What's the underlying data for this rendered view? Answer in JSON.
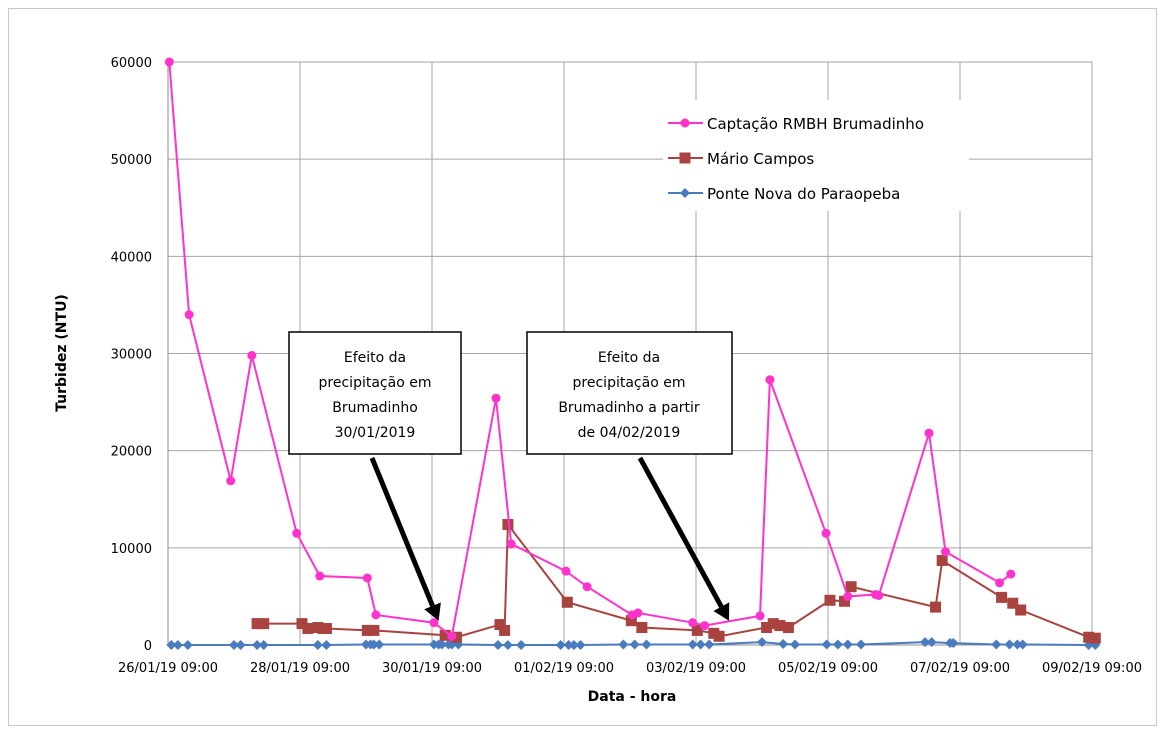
{
  "chart_data": {
    "type": "line",
    "title": "",
    "xlabel": "Data - hora",
    "ylabel": "Turbidez (NTU)",
    "ylim": [
      0,
      60000
    ],
    "yticks": [
      0,
      10000,
      20000,
      30000,
      40000,
      50000,
      60000
    ],
    "ytick_labels": [
      "0",
      "10000",
      "20000",
      "30000",
      "40000",
      "50000",
      "60000"
    ],
    "xlim": [
      0,
      14
    ],
    "xticks": [
      0,
      2,
      4,
      6,
      8,
      10,
      12,
      14
    ],
    "xtick_labels": [
      "26/01/19 09:00",
      "28/01/19 09:00",
      "30/01/19 09:00",
      "01/02/19 09:00",
      "03/02/19 09:00",
      "05/02/19 09:00",
      "07/02/19 09:00",
      "09/02/19 09:00"
    ],
    "x_unit": "days after 26/01/19 09:00",
    "grid": true,
    "legend_position": "top-right",
    "series": [
      {
        "name": "Captação RMBH Brumadinho",
        "color": "#ff33cc",
        "marker": "circle",
        "x": [
          0.02,
          0.32,
          0.95,
          1.27,
          1.95,
          2.3,
          3.02,
          3.15,
          4.03,
          4.3,
          4.97,
          5.2,
          6.03,
          6.35,
          7.03,
          7.12,
          7.95,
          8.13,
          8.97,
          9.12,
          9.97,
          10.3,
          10.72,
          10.77,
          11.53,
          11.78,
          12.6,
          12.77
        ],
        "y": [
          60000,
          34000,
          16900,
          29800,
          11500,
          7100,
          6900,
          3100,
          2300,
          900,
          25400,
          10400,
          7600,
          6000,
          3100,
          3300,
          2300,
          2000,
          3000,
          27300,
          11500,
          5000,
          5200,
          5100,
          21800,
          9600,
          6400,
          7300
        ]
      },
      {
        "name": "Mário Campos",
        "color": "#a84340",
        "marker": "square",
        "x": [
          1.35,
          1.45,
          2.03,
          2.12,
          2.27,
          2.35,
          2.4,
          3.02,
          3.12,
          4.2,
          4.37,
          5.03,
          5.1,
          5.15,
          6.05,
          7.02,
          7.18,
          8.02,
          8.27,
          8.35,
          9.07,
          9.17,
          9.27,
          9.4,
          10.03,
          10.25,
          10.35,
          11.63,
          11.73,
          12.63,
          12.8,
          12.92,
          13.95,
          14.05
        ],
        "y": [
          2200,
          2200,
          2200,
          1700,
          1800,
          1700,
          1700,
          1500,
          1500,
          1000,
          800,
          2100,
          1500,
          12400,
          4400,
          2500,
          1800,
          1500,
          1200,
          900,
          1800,
          2200,
          2000,
          1800,
          4600,
          4500,
          6000,
          3900,
          8700,
          4900,
          4300,
          3600,
          800,
          700
        ]
      },
      {
        "name": "Ponte Nova do Paraopeba",
        "color": "#4a7bbf",
        "marker": "diamond",
        "x": [
          0.05,
          0.15,
          0.3,
          1.0,
          1.1,
          1.35,
          1.45,
          2.27,
          2.4,
          3.0,
          3.07,
          3.12,
          3.2,
          4.03,
          4.1,
          4.15,
          4.25,
          4.3,
          4.4,
          5.0,
          5.15,
          5.35,
          5.95,
          6.07,
          6.15,
          6.25,
          6.9,
          7.07,
          7.25,
          7.95,
          8.07,
          8.2,
          9.0,
          9.32,
          9.5,
          9.98,
          10.15,
          10.3,
          10.5,
          11.47,
          11.57,
          11.85,
          11.9,
          12.55,
          12.75,
          12.87,
          12.95,
          13.95,
          14.05
        ],
        "y": [
          0,
          0,
          0,
          0,
          0,
          0,
          0,
          0,
          0,
          50,
          50,
          50,
          50,
          50,
          50,
          50,
          50,
          50,
          50,
          0,
          0,
          0,
          0,
          0,
          0,
          0,
          50,
          50,
          50,
          50,
          50,
          50,
          300,
          100,
          50,
          50,
          50,
          50,
          50,
          300,
          300,
          200,
          200,
          50,
          50,
          50,
          50,
          0,
          0
        ]
      }
    ],
    "annotations": [
      {
        "lines": [
          "Efeito da",
          "precipitação em",
          "Brumadinho",
          "30/01/2019"
        ],
        "arrow_to_x": 4.1,
        "arrow_to_y": 2500
      },
      {
        "lines": [
          "Efeito da",
          "precipitação em",
          "Brumadinho a partir",
          "de 04/02/2019"
        ],
        "arrow_to_x": 8.5,
        "arrow_to_y": 2500
      }
    ]
  }
}
